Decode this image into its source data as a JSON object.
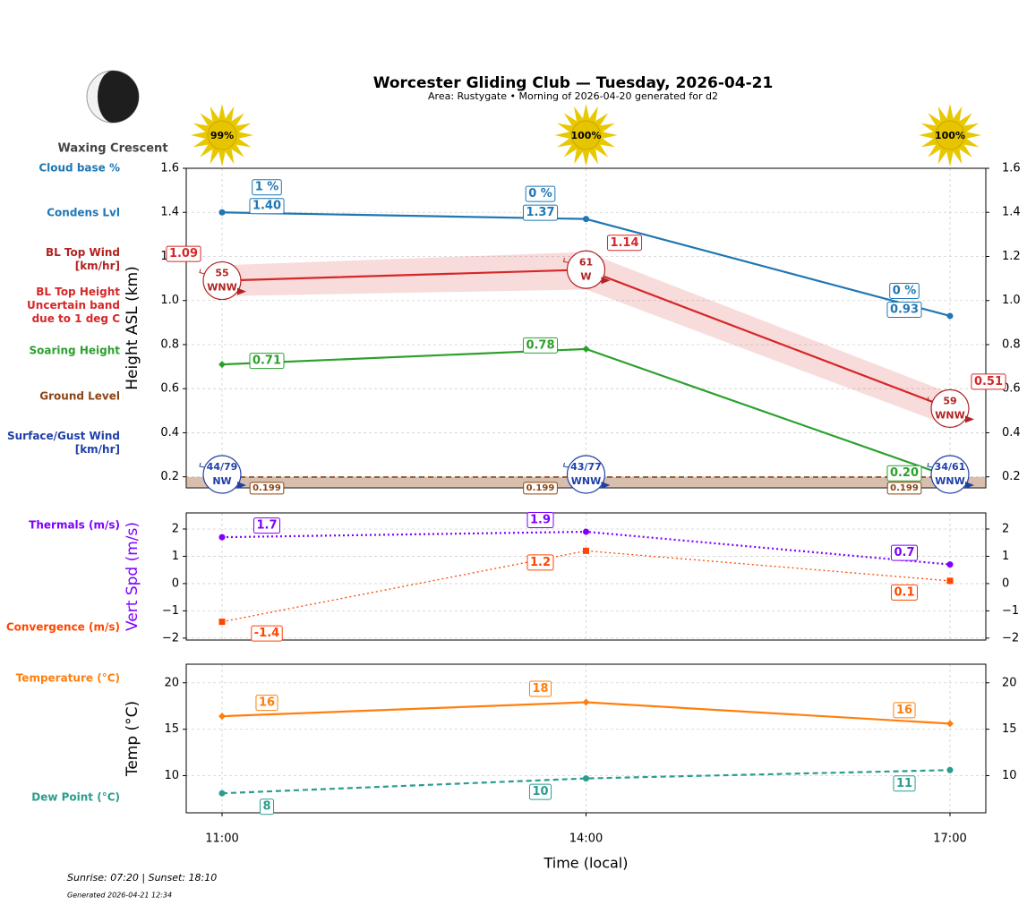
{
  "header": {
    "title": "Worcester Gliding Club — Tuesday, 2026-04-21",
    "subtitle": "Area: Rustygate • Morning of 2026-04-20 generated for d2"
  },
  "moon": {
    "phase": "Waxing Crescent"
  },
  "sun": {
    "values": [
      99,
      100,
      100
    ],
    "value_labels": [
      "99%",
      "100%",
      "100%"
    ]
  },
  "footer": {
    "sun_times": "Sunrise: 07:20 | Sunset: 18:10",
    "generated": "Generated 2026-04-21 12:34"
  },
  "chart_data": [
    {
      "type": "line",
      "ylabel": "Height ASL (km)",
      "ylim": [
        0.15,
        1.6
      ],
      "yticks": [
        0.2,
        0.4,
        0.6,
        0.8,
        {
          "value": 1,
          "label": "1.0"
        },
        1.2,
        1.4,
        1.6
      ],
      "grid": true,
      "series": [
        {
          "name": "Cloud base %",
          "kind": "annotation",
          "color": "#1f77b4",
          "values": [
            1,
            0,
            0
          ],
          "value_labels": [
            "1 %",
            "0 %",
            "0 %"
          ]
        },
        {
          "name": "Condens Lvl",
          "kind": "line",
          "color": "#1f77b4",
          "marker": "circle",
          "linestyle": "solid",
          "values": [
            1.4,
            1.37,
            0.93
          ],
          "value_labels": [
            "1.40",
            "1.37",
            "0.93"
          ]
        },
        {
          "name": "BL Top Wind\n[km/hr]",
          "kind": "wind",
          "color": "#b22222",
          "values": [
            55,
            61,
            59
          ],
          "directions": [
            "WNW",
            "W",
            "WNW"
          ]
        },
        {
          "name": "BL Top Height\nUncertain band\ndue to 1 deg C",
          "kind": "line",
          "color": "#d62728",
          "linestyle": "solid",
          "values": [
            1.09,
            1.14,
            0.51
          ],
          "value_labels": [
            "1.09",
            "1.14",
            "0.51"
          ],
          "band_upper": [
            1.16,
            1.22,
            0.58
          ],
          "band_lower": [
            1.02,
            1.05,
            0.43
          ]
        },
        {
          "name": "Soaring Height",
          "kind": "line",
          "color": "#2ca02c",
          "marker": "diamond",
          "linestyle": "solid",
          "values": [
            0.71,
            0.78,
            0.2
          ],
          "value_labels": [
            "0.71",
            "0.78",
            "0.20"
          ]
        },
        {
          "name": "Ground Level",
          "kind": "ground",
          "color": "#8b4513",
          "linestyle": "dashed",
          "values": [
            0.199,
            0.199,
            0.199
          ]
        },
        {
          "name": "Surface/Gust Wind\n[km/hr]",
          "kind": "wind",
          "color": "#1f3fa8",
          "labels": [
            "44/79",
            "43/77",
            "34/61"
          ],
          "directions": [
            "NW",
            "WNW",
            "WNW"
          ]
        }
      ]
    },
    {
      "type": "line",
      "ylabel": "Vert Spd (m/s)",
      "ylabel_color": "#7f00ff",
      "ylim": [
        -2.07,
        2.59
      ],
      "yticks": [
        {
          "value": -2,
          "label": "−2"
        },
        {
          "value": -1,
          "label": "−1"
        },
        0,
        1,
        2
      ],
      "grid": true,
      "series": [
        {
          "name": "Thermals (m/s)",
          "kind": "line",
          "color": "#7f00ff",
          "marker": "circle",
          "linestyle": "dotted",
          "linewidth": 2.2,
          "values": [
            1.7,
            1.9,
            0.7
          ]
        },
        {
          "name": "Convergence (m/s)",
          "kind": "line",
          "color": "#ff4500",
          "marker": "square",
          "linestyle": "dotted",
          "linewidth": 1.3,
          "values": [
            -1.4,
            1.2,
            0.1
          ]
        }
      ]
    },
    {
      "type": "line",
      "xlabel": "Time (local)",
      "categories": [
        "11:00",
        "14:00",
        "17:00"
      ],
      "ylabel": "Temp (°C)",
      "ylim": [
        6,
        22
      ],
      "yticks": [
        10,
        15,
        20
      ],
      "grid": true,
      "series": [
        {
          "name": "Temperature (°C)",
          "kind": "line",
          "color": "#ff7f0e",
          "marker": "diamond",
          "linestyle": "solid",
          "values": [
            16.4,
            17.9,
            15.6
          ],
          "value_labels": [
            "16",
            "18",
            "16"
          ]
        },
        {
          "name": "Dew Point (°C)",
          "kind": "line",
          "color": "#2a9d8f",
          "marker": "circle",
          "linestyle": "dashed",
          "values": [
            8.1,
            9.7,
            10.6
          ],
          "value_labels": [
            "8",
            "10",
            "11"
          ]
        }
      ]
    }
  ]
}
